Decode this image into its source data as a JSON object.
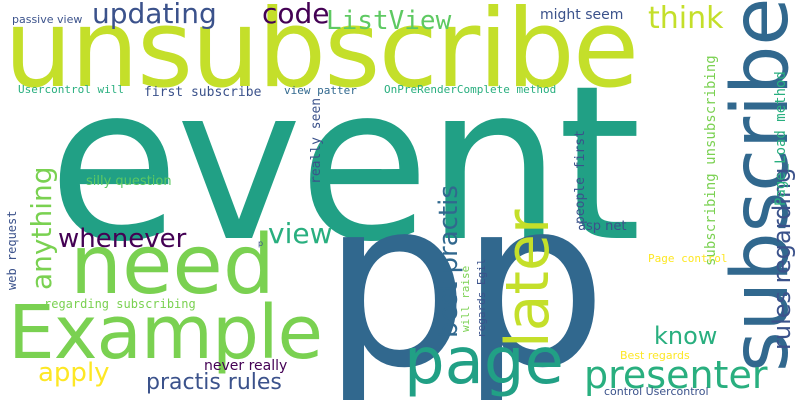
{
  "palette": {
    "lime": "#c4df2a",
    "green": "#5ec962",
    "light_green": "#7ad151",
    "teal": "#21a085",
    "teal2": "#29af7f",
    "blue": "#31688e",
    "dark_blue": "#3b528b",
    "indigo": "#440154",
    "yellow": "#fde725"
  },
  "words": [
    {
      "text": "event"
    },
    {
      "text": "p"
    },
    {
      "text": "p"
    },
    {
      "text": "unsubscribe"
    },
    {
      "text": "subscribe"
    },
    {
      "text": "need"
    },
    {
      "text": "Example"
    },
    {
      "text": "page"
    },
    {
      "text": "later"
    },
    {
      "text": "presenter"
    },
    {
      "text": "updating"
    },
    {
      "text": "code"
    },
    {
      "text": "ListView"
    },
    {
      "text": "think"
    },
    {
      "text": "might seem"
    },
    {
      "text": "whenever"
    },
    {
      "text": "view"
    },
    {
      "text": "anything"
    },
    {
      "text": "best practis"
    },
    {
      "text": "rules regarding"
    },
    {
      "text": "Page_Load method"
    },
    {
      "text": "subscribing unsubscribing"
    },
    {
      "text": "know"
    },
    {
      "text": "apply"
    },
    {
      "text": "practis rules"
    },
    {
      "text": "never really"
    },
    {
      "text": "passive view"
    },
    {
      "text": "Usercontrol will"
    },
    {
      "text": "first subscribe"
    },
    {
      "text": "view patter"
    },
    {
      "text": "OnPreRenderComplete method"
    },
    {
      "text": "really seen"
    },
    {
      "text": "people first"
    },
    {
      "text": "silly question"
    },
    {
      "text": "web request"
    },
    {
      "text": "regarding subscribing"
    },
    {
      "text": "will raise"
    },
    {
      "text": "regards Egil"
    },
    {
      "text": "asp net"
    },
    {
      "text": "Page control"
    },
    {
      "text": "Best regards"
    },
    {
      "text": "control Usercontrol"
    },
    {
      "text": "p"
    }
  ]
}
